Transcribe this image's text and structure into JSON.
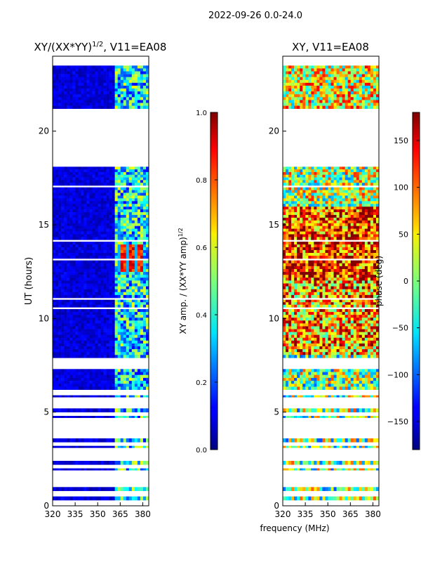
{
  "figure": {
    "suptitle": "2022-09-26 0.0-24.0",
    "xlabel_shared": "frequency (MHz)"
  },
  "chart_data": [
    {
      "type": "heatmap",
      "title_main": "XY/(XX*YY)",
      "title_sup": "1/2",
      "title_tail": ", V11=EA08",
      "xlabel": "",
      "ylabel": "UT (hours)",
      "xlim": [
        320,
        384
      ],
      "ylim": [
        0,
        24
      ],
      "xticks": [
        320,
        335,
        350,
        365,
        380
      ],
      "yticks": [
        0,
        5,
        10,
        15,
        20
      ],
      "colormap": "jet",
      "colorbar": {
        "label_main": "XY amp. / (XX*YY amp)",
        "label_sup": "1/2",
        "vmin": 0.0,
        "vmax": 1.0,
        "ticks": [
          "0.0",
          "0.2",
          "0.4",
          "0.6",
          "0.8",
          "1.0"
        ]
      },
      "data_hours": [
        [
          0.3,
          0.5
        ],
        [
          0.8,
          1.0
        ],
        [
          1.9,
          2.0
        ],
        [
          2.2,
          2.4
        ],
        [
          3.1,
          3.2
        ],
        [
          3.4,
          3.6
        ],
        [
          4.7,
          4.8
        ],
        [
          5.0,
          5.2
        ],
        [
          5.8,
          5.9
        ],
        [
          6.2,
          7.3
        ],
        [
          7.9,
          10.5
        ],
        [
          10.6,
          11.0
        ],
        [
          11.1,
          13.1
        ],
        [
          13.2,
          14.1
        ],
        [
          14.2,
          17.0
        ],
        [
          17.1,
          18.1
        ],
        [
          21.2,
          23.5
        ]
      ],
      "hot_block": {
        "hours": [
          12.5,
          13.9
        ],
        "freq": [
          364,
          380
        ],
        "value": 0.85
      }
    },
    {
      "type": "heatmap",
      "title": "XY, V11=EA08",
      "xlabel": "frequency (MHz)",
      "ylabel": "",
      "xlim": [
        320,
        384
      ],
      "ylim": [
        0,
        24
      ],
      "xticks": [
        320,
        335,
        350,
        365,
        380
      ],
      "yticks": [
        0,
        5,
        10,
        15,
        20
      ],
      "colormap": "jet",
      "colorbar": {
        "label": "phase (deg)",
        "vmin": -180,
        "vmax": 180,
        "ticks": [
          "150",
          "100",
          "50",
          "0",
          "−50",
          "−100",
          "−150"
        ]
      },
      "data_hours": [
        [
          0.3,
          0.5
        ],
        [
          0.8,
          1.0
        ],
        [
          1.9,
          2.0
        ],
        [
          2.2,
          2.4
        ],
        [
          3.1,
          3.2
        ],
        [
          3.4,
          3.6
        ],
        [
          4.7,
          4.8
        ],
        [
          5.0,
          5.2
        ],
        [
          5.8,
          5.9
        ],
        [
          6.2,
          7.3
        ],
        [
          7.9,
          10.5
        ],
        [
          10.6,
          11.0
        ],
        [
          11.1,
          13.1
        ],
        [
          13.2,
          14.1
        ],
        [
          14.2,
          17.0
        ],
        [
          17.1,
          18.1
        ],
        [
          21.2,
          23.5
        ]
      ]
    }
  ]
}
